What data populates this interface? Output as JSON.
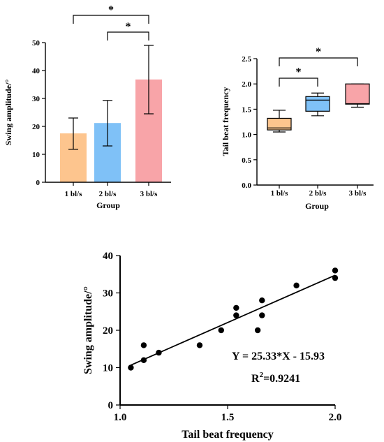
{
  "chart_data": [
    {
      "type": "bar",
      "xlabel": "Group",
      "ylabel": "Swing amplitude/°",
      "categories": [
        "1 bl/s",
        "2 bl/s",
        "3 bl/s"
      ],
      "values": [
        17.5,
        21.2,
        36.8
      ],
      "errors_low": [
        11.8,
        13.0,
        24.5
      ],
      "errors_high": [
        23.0,
        29.3,
        49.0
      ],
      "colors": [
        "#fdc58e",
        "#7fc1f7",
        "#f8a4a8"
      ],
      "ylim": [
        0,
        50
      ],
      "yticks": [
        "0",
        "10",
        "20",
        "30",
        "40",
        "50"
      ],
      "significance": [
        {
          "from": 0,
          "to": 2,
          "label": "*"
        },
        {
          "from": 1,
          "to": 2,
          "label": "*"
        }
      ]
    },
    {
      "type": "box",
      "xlabel": "Group",
      "ylabel": "Tail beat frequency",
      "categories": [
        "1 bl/s",
        "2 bl/s",
        "3 bl/s"
      ],
      "boxes": [
        {
          "min": 1.05,
          "q1": 1.09,
          "median": 1.13,
          "q3": 1.32,
          "max": 1.48
        },
        {
          "min": 1.37,
          "q1": 1.46,
          "median": 1.68,
          "q3": 1.75,
          "max": 1.82
        },
        {
          "min": 1.54,
          "q1": 1.6,
          "median": 1.61,
          "q3": 2.0,
          "max": 2.0
        }
      ],
      "colors": [
        "#fdc58e",
        "#7fc1f7",
        "#f8a4a8"
      ],
      "ylim": [
        0,
        2.5
      ],
      "yticks": [
        "0.0",
        "0.5",
        "1.0",
        "1.5",
        "2.0",
        "2.5"
      ],
      "significance": [
        {
          "from": 0,
          "to": 2,
          "label": "*"
        },
        {
          "from": 0,
          "to": 1,
          "label": "*"
        }
      ]
    },
    {
      "type": "scatter",
      "xlabel": "Tail beat frequency",
      "ylabel": "Swing amplitude/°",
      "xlim": [
        1.0,
        2.0
      ],
      "ylim": [
        0,
        40
      ],
      "xticks": [
        "1.0",
        "1.5",
        "2.0"
      ],
      "yticks": [
        "0",
        "10",
        "20",
        "30",
        "40"
      ],
      "points": [
        [
          1.05,
          10
        ],
        [
          1.11,
          12
        ],
        [
          1.11,
          16
        ],
        [
          1.18,
          14
        ],
        [
          1.37,
          16
        ],
        [
          1.47,
          20
        ],
        [
          1.54,
          24
        ],
        [
          1.54,
          26
        ],
        [
          1.64,
          20
        ],
        [
          1.66,
          24
        ],
        [
          1.66,
          28
        ],
        [
          1.82,
          32
        ],
        [
          2.0,
          34
        ],
        [
          2.0,
          36
        ]
      ],
      "fit": {
        "slope": 25.33,
        "intercept": -15.93
      },
      "equation": "Y = 25.33*X - 15.93",
      "r2_prefix": "R",
      "r2_sup": "2",
      "r2_value": "=0.9241"
    }
  ]
}
